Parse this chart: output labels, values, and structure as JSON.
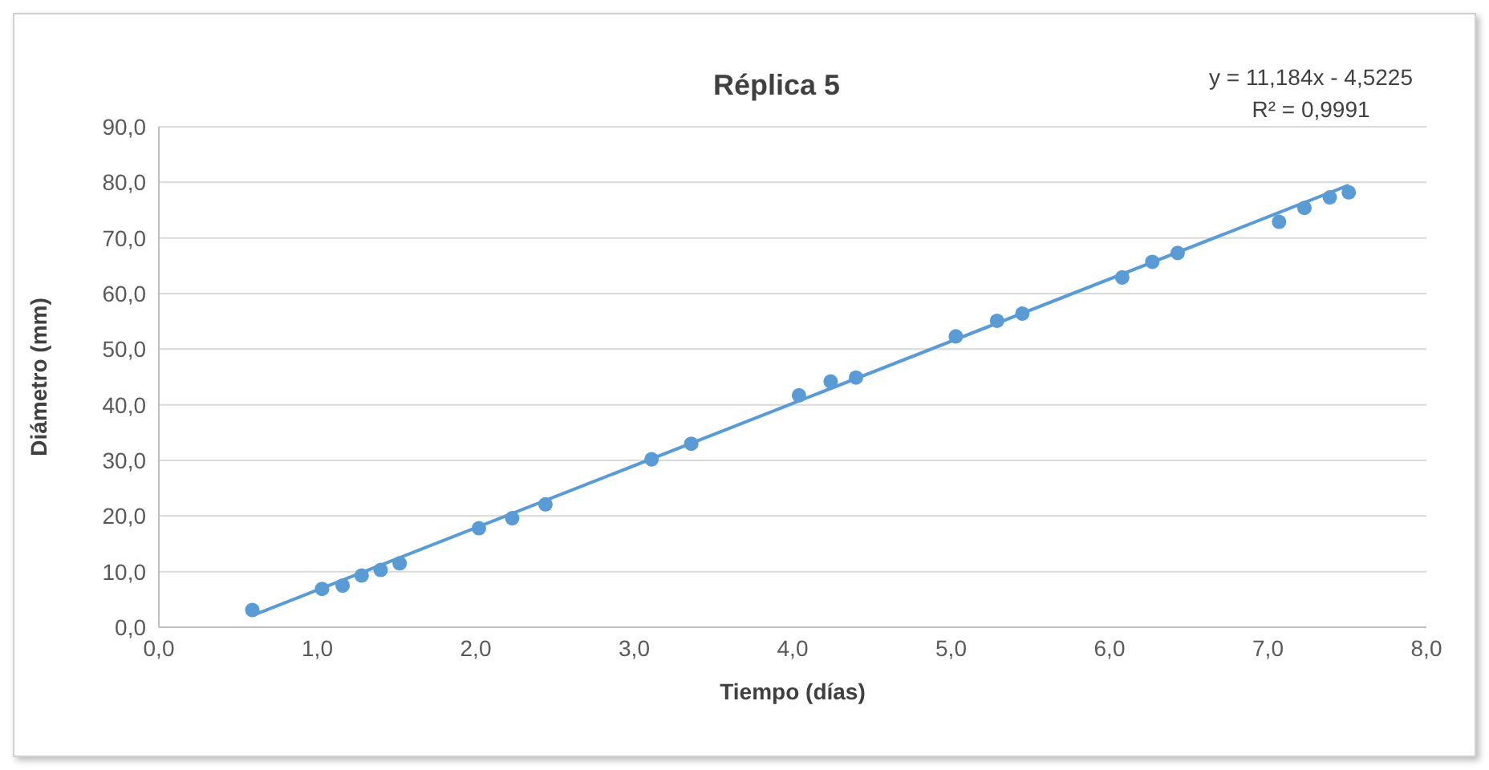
{
  "chart_data": {
    "type": "scatter",
    "title": "Réplica 5",
    "xlabel": "Tiempo (días)",
    "ylabel": "Diámetro (mm)",
    "annotations": [
      "y = 11,184x - 4,5225",
      "R² = 0,9991"
    ],
    "series": [
      {
        "color": "#5b9bd5",
        "marker": "circle",
        "x": [
          0.59,
          1.03,
          1.16,
          1.28,
          1.4,
          1.52,
          2.02,
          2.23,
          2.44,
          3.11,
          3.36,
          4.04,
          4.24,
          4.4,
          5.03,
          5.29,
          5.45,
          6.08,
          6.27,
          6.43,
          7.07,
          7.23,
          7.39,
          7.51
        ],
        "values": [
          3.1,
          6.9,
          7.5,
          9.3,
          10.3,
          11.5,
          17.8,
          19.6,
          22.1,
          30.2,
          33.0,
          41.7,
          44.2,
          44.9,
          52.3,
          55.1,
          56.4,
          62.9,
          65.7,
          67.3,
          72.9,
          75.4,
          77.3,
          78.2
        ]
      },
      {
        "type": "line",
        "color": "#5b9bd5",
        "marker": "none",
        "line_style": "solid",
        "x": [
          0.59,
          7.51
        ],
        "values": [
          2.1,
          79.5
        ]
      }
    ],
    "xlim": [
      0,
      8
    ],
    "xticks": [
      {
        "value": 0,
        "label": "0,0"
      },
      {
        "value": 1,
        "label": "1,0"
      },
      {
        "value": 2,
        "label": "2,0"
      },
      {
        "value": 3,
        "label": "3,0"
      },
      {
        "value": 4,
        "label": "4,0"
      },
      {
        "value": 5,
        "label": "5,0"
      },
      {
        "value": 6,
        "label": "6,0"
      },
      {
        "value": 7,
        "label": "7,0"
      },
      {
        "value": 8,
        "label": "8,0"
      }
    ],
    "ylim": [
      0,
      90
    ],
    "yticks": [
      {
        "value": 0,
        "label": "0,0"
      },
      {
        "value": 10,
        "label": "10,0"
      },
      {
        "value": 20,
        "label": "20,0"
      },
      {
        "value": 30,
        "label": "30,0"
      },
      {
        "value": 40,
        "label": "40,0"
      },
      {
        "value": 50,
        "label": "50,0"
      },
      {
        "value": 60,
        "label": "60,0"
      },
      {
        "value": 70,
        "label": "70,0"
      },
      {
        "value": 80,
        "label": "80,0"
      },
      {
        "value": 90,
        "label": "90,0"
      }
    ],
    "grid": "y"
  }
}
